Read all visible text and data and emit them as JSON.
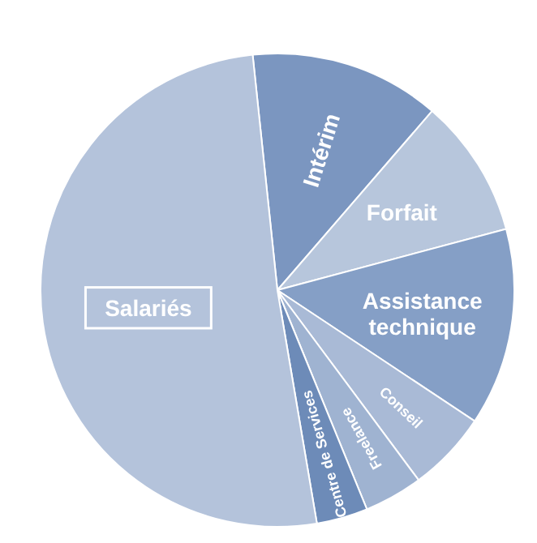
{
  "chart_data": {
    "type": "pie",
    "categories": [
      "Intérim",
      "Forfait",
      "Assistance technique",
      "Conseil",
      "Freelance",
      "Centre de Services",
      "Salariés"
    ],
    "values": [
      13,
      9.5,
      13.5,
      5.5,
      4,
      3.5,
      51
    ],
    "colors": [
      "#7b96c0",
      "#b7c6dc",
      "#859fc6",
      "#a9bad6",
      "#9fb3d1",
      "#6d8bb8",
      "#b4c3db"
    ]
  }
}
